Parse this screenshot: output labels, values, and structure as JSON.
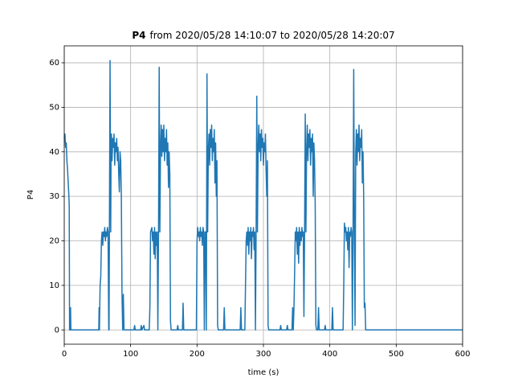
{
  "chart_data": {
    "type": "line",
    "title": [
      "P4",
      "from 2020/05/28 14:10:07 to 2020/05/28 14:20:07"
    ],
    "xlabel": "time (s)",
    "ylabel": "P4",
    "xlim": [
      0,
      600
    ],
    "ylim": [
      -3.2,
      63.8
    ],
    "xticks": [
      0,
      100,
      200,
      300,
      400,
      500,
      600
    ],
    "yticks": [
      0,
      10,
      20,
      30,
      40,
      50,
      60
    ],
    "grid": true,
    "x": [
      0,
      1,
      2,
      3,
      4,
      5,
      6,
      7,
      7.5,
      8,
      9,
      9.5,
      10,
      52,
      52.5,
      53,
      54,
      55,
      56,
      57,
      58,
      59,
      60,
      61,
      62,
      63,
      64,
      65,
      66,
      67,
      67.5,
      68,
      69,
      70,
      70.5,
      71,
      72,
      73,
      74,
      75,
      76,
      77,
      78,
      79,
      80,
      81,
      82,
      83,
      84,
      85,
      86,
      87,
      88,
      89,
      90,
      105,
      106,
      107,
      115,
      116,
      117,
      120,
      121,
      128,
      129,
      130,
      132,
      133,
      134,
      135,
      136,
      137,
      138,
      139,
      140,
      141,
      142,
      143,
      144,
      145,
      146,
      147,
      148,
      149,
      150,
      151,
      152,
      153,
      154,
      155,
      156,
      157,
      158,
      159,
      160,
      161,
      170,
      171,
      172,
      178,
      179,
      180,
      199,
      200,
      201,
      202,
      203,
      204,
      205,
      206,
      207,
      208,
      209,
      210,
      211,
      212,
      213,
      214,
      215,
      216,
      217,
      218,
      219,
      220,
      221,
      222,
      223,
      224,
      225,
      226,
      227,
      228,
      229,
      230,
      231,
      232,
      240,
      241,
      242,
      265,
      266,
      267,
      272,
      273,
      274,
      275,
      276,
      277,
      278,
      279,
      280,
      281,
      282,
      283,
      284,
      285,
      286,
      287,
      288,
      289,
      290,
      291,
      292,
      293,
      294,
      295,
      296,
      297,
      298,
      299,
      300,
      301,
      302,
      303,
      304,
      305,
      306,
      307,
      308,
      325,
      326,
      327,
      335,
      336,
      337,
      343,
      344,
      345,
      346,
      347,
      348,
      349,
      350,
      351,
      352,
      353,
      354,
      355,
      356,
      357,
      358,
      359,
      360,
      361,
      362,
      363,
      364,
      365,
      366,
      367,
      368,
      369,
      370,
      371,
      372,
      373,
      374,
      375,
      376,
      377,
      378,
      379,
      380,
      382,
      383,
      384,
      392,
      393,
      394,
      403,
      404,
      405,
      420,
      421,
      422,
      423,
      424,
      425,
      426,
      427,
      428,
      429,
      430,
      431,
      432,
      433,
      434,
      435,
      436,
      437,
      438,
      439,
      440,
      441,
      442,
      443,
      444,
      445,
      446,
      447,
      448,
      449,
      450,
      451,
      452,
      453,
      454,
      600
    ],
    "series": [
      {
        "name": "P4",
        "color": "#1f77b4",
        "values": [
          43,
          44,
          41,
          42,
          38,
          36,
          33,
          30,
          28,
          0,
          0,
          5,
          0,
          0,
          5,
          0,
          10,
          12,
          20,
          22,
          19,
          22,
          21,
          23,
          20,
          22,
          21,
          23,
          22,
          0,
          0,
          22,
          60.5,
          22,
          40,
          44,
          38,
          43,
          41,
          44,
          37,
          42,
          40,
          43,
          38,
          41,
          35,
          31,
          40,
          38,
          30,
          8,
          0,
          8,
          0,
          0,
          1,
          0,
          0,
          1,
          0,
          1,
          0,
          0,
          5,
          22,
          23,
          20,
          22,
          17,
          23,
          16,
          22,
          19,
          22,
          0,
          22,
          59,
          22,
          41,
          46,
          39,
          45,
          40,
          46,
          38,
          43,
          40,
          45,
          37,
          42,
          32,
          40,
          35,
          2,
          0,
          0,
          1,
          0,
          0,
          6,
          0,
          0,
          20,
          23,
          21,
          22,
          20,
          23,
          21,
          22,
          19,
          23,
          22,
          0,
          22,
          22,
          0,
          57.5,
          22,
          40,
          44,
          37,
          45,
          41,
          46,
          38,
          43,
          40,
          45,
          33,
          42,
          30,
          38,
          1,
          0,
          0,
          5,
          0,
          0,
          5,
          0,
          0,
          10,
          20,
          22,
          19,
          23,
          17,
          22,
          20,
          23,
          16,
          22,
          21,
          23,
          18,
          22,
          0,
          22,
          52.5,
          22,
          41,
          46,
          40,
          44,
          38,
          45,
          41,
          43,
          37,
          42,
          40,
          44,
          36,
          30,
          38,
          1,
          0,
          0,
          1,
          0,
          0,
          1,
          0,
          0,
          5,
          0,
          5,
          13,
          22,
          20,
          23,
          17,
          22,
          15,
          23,
          19,
          22,
          20,
          23,
          21,
          22,
          3,
          22,
          48.5,
          22,
          40,
          46,
          38,
          44,
          41,
          45,
          37,
          43,
          40,
          44,
          30,
          42,
          38,
          28,
          1,
          0,
          0,
          5,
          0,
          0,
          1,
          0,
          0,
          5,
          0,
          0,
          10,
          24,
          22,
          23,
          20,
          22,
          18,
          23,
          14,
          22,
          21,
          23,
          22,
          0,
          22,
          58.5,
          22,
          1,
          40,
          45,
          37,
          44,
          40,
          46,
          38,
          43,
          41,
          45,
          33,
          40,
          30,
          5,
          6,
          0,
          0
        ]
      }
    ]
  }
}
